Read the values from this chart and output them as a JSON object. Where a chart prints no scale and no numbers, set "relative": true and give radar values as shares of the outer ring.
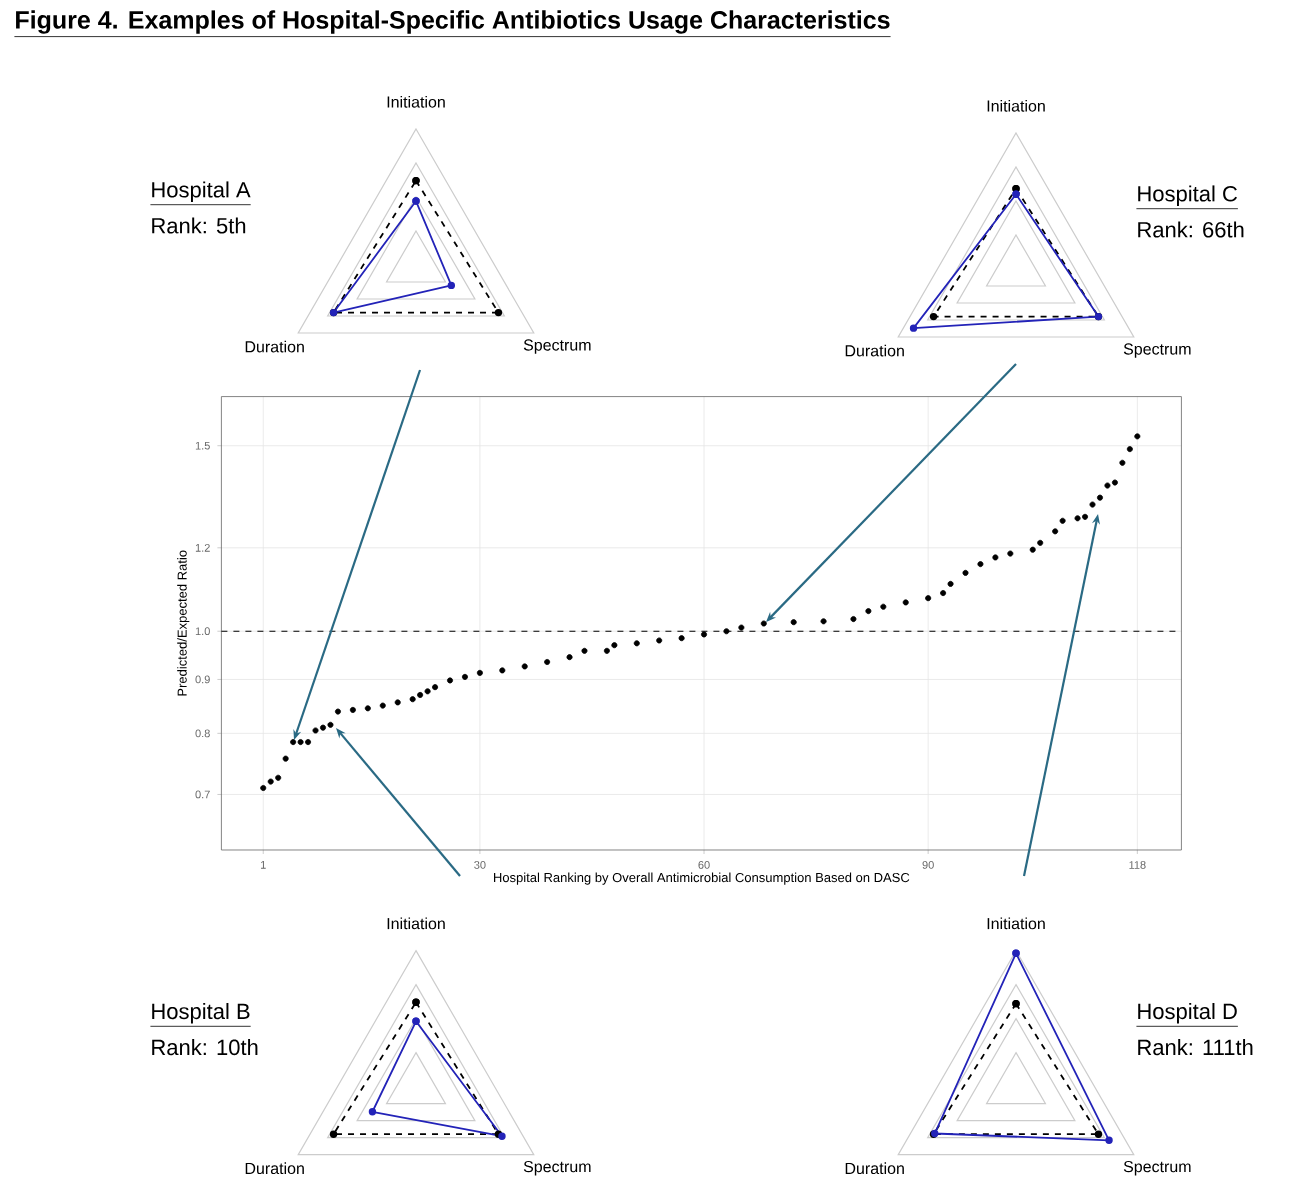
{
  "chart_data": [
    {
      "type": "scatter",
      "title": "Figure 4. Examples of Hospital-Specific Antibiotics Usage Characteristics",
      "xlabel": "Hospital Ranking by Overall Antimicrobial Consumption Based on DASC",
      "ylabel": "Predicted/Expected Ratio",
      "x": [
        1,
        2,
        3,
        4,
        5,
        6,
        7,
        8,
        9,
        10,
        11,
        13,
        15,
        17,
        19,
        21,
        22,
        23,
        24,
        26,
        28,
        30,
        33,
        36,
        39,
        42,
        44,
        47,
        48,
        51,
        54,
        57,
        60,
        63,
        65,
        68,
        72,
        76,
        80,
        82,
        84,
        87,
        90,
        92,
        93,
        95,
        97,
        99,
        101,
        104,
        105,
        107,
        108,
        110,
        111,
        112,
        113,
        114,
        115,
        116,
        117,
        118
      ],
      "values": [
        0.71,
        0.72,
        0.726,
        0.757,
        0.785,
        0.785,
        0.785,
        0.805,
        0.81,
        0.815,
        0.839,
        0.842,
        0.845,
        0.85,
        0.856,
        0.862,
        0.87,
        0.877,
        0.885,
        0.898,
        0.905,
        0.913,
        0.918,
        0.926,
        0.935,
        0.945,
        0.958,
        0.958,
        0.97,
        0.974,
        0.98,
        0.985,
        0.993,
        1.0,
        1.008,
        1.017,
        1.02,
        1.022,
        1.027,
        1.045,
        1.055,
        1.065,
        1.075,
        1.087,
        1.109,
        1.136,
        1.158,
        1.175,
        1.185,
        1.195,
        1.213,
        1.244,
        1.273,
        1.28,
        1.284,
        1.319,
        1.339,
        1.375,
        1.384,
        1.445,
        1.489,
        1.531
      ],
      "color": "#000000",
      "marker": "circle",
      "log": "y",
      "grid": true,
      "xlim": [
        -4.6,
        123.9
      ],
      "ylim": [
        0.62,
        1.67
      ],
      "xticks": [
        1,
        30,
        60,
        90,
        118
      ],
      "yticks": [
        0.7,
        0.8,
        0.9,
        {
          "value": 1.0,
          "label": "1.0"
        },
        1.2,
        1.5
      ],
      "ref_lines": [
        {
          "axis": "y",
          "value": 1.0,
          "color": "#000000",
          "line_style": "dashed"
        }
      ]
    },
    {
      "type": "radar",
      "title": "Hospital A",
      "subtitle": "Rank: 5th",
      "categories": [
        "Initiation",
        "Spectrum",
        "Duration"
      ],
      "relative": true,
      "marker": "circle",
      "series": [
        {
          "color": "#000000",
          "line_style": "dashed",
          "values": [
            0.62,
            0.7,
            0.7
          ]
        },
        {
          "color": "#2323b8",
          "line_style": "solid",
          "values": [
            0.47,
            0.3,
            0.7
          ]
        }
      ]
    },
    {
      "type": "radar",
      "title": "Hospital C",
      "subtitle": "Rank: 66th",
      "categories": [
        "Initiation",
        "Spectrum",
        "Duration"
      ],
      "relative": true,
      "marker": "circle",
      "series": [
        {
          "color": "#000000",
          "line_style": "dashed",
          "values": [
            0.59,
            0.7,
            0.7
          ]
        },
        {
          "color": "#2323b8",
          "line_style": "solid",
          "values": [
            0.55,
            0.7,
            0.87
          ]
        }
      ]
    },
    {
      "type": "radar",
      "title": "Hospital B",
      "subtitle": "Rank: 10th",
      "categories": [
        "Initiation",
        "Spectrum",
        "Duration"
      ],
      "relative": true,
      "marker": "circle",
      "series": [
        {
          "color": "#000000",
          "line_style": "dashed",
          "values": [
            0.62,
            0.7,
            0.7
          ]
        },
        {
          "color": "#2323b8",
          "line_style": "solid",
          "values": [
            0.48,
            0.73,
            0.37
          ]
        }
      ]
    },
    {
      "type": "radar",
      "title": "Hospital D",
      "subtitle": "Rank: 111th",
      "categories": [
        "Initiation",
        "Spectrum",
        "Duration"
      ],
      "relative": true,
      "marker": "circle",
      "series": [
        {
          "color": "#000000",
          "line_style": "dashed",
          "values": [
            0.61,
            0.7,
            0.7
          ]
        },
        {
          "color": "#2323b8",
          "line_style": "solid",
          "values": [
            0.98,
            0.79,
            0.69
          ]
        }
      ]
    }
  ]
}
